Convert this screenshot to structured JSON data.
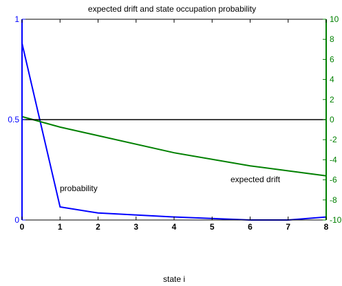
{
  "chart_data": {
    "type": "line",
    "title": "expected drift and state occupation probability",
    "xlabel": "state i",
    "xlim": [
      0,
      8
    ],
    "x_ticks": [
      "0",
      "1",
      "2",
      "3",
      "4",
      "5",
      "6",
      "7",
      "8"
    ],
    "left_axis": {
      "ylim": [
        0,
        1
      ],
      "ticks": [
        "0",
        "0.5",
        "1"
      ],
      "color": "#0000ff"
    },
    "right_axis": {
      "ylim": [
        -10,
        10
      ],
      "ticks": [
        "-10",
        "-8",
        "-6",
        "-4",
        "-2",
        "0",
        "2",
        "4",
        "6",
        "8",
        "10"
      ],
      "color": "#008000"
    },
    "series": [
      {
        "name": "probability",
        "axis": "left",
        "color": "#0000ff",
        "x": [
          0,
          1,
          2,
          4,
          6,
          7,
          8
        ],
        "y": [
          0.88,
          0.065,
          0.035,
          0.015,
          0.0,
          0.0,
          0.015
        ]
      },
      {
        "name": "expected drift",
        "axis": "right",
        "color": "#008000",
        "x": [
          0,
          1,
          4,
          6,
          8
        ],
        "y": [
          0.3,
          -0.75,
          -3.3,
          -4.6,
          -5.6
        ]
      },
      {
        "name": "",
        "axis": "right",
        "color": "#000000",
        "x": [
          0,
          8
        ],
        "y": [
          0,
          0
        ]
      }
    ],
    "annotations": [
      "probability",
      "expected drift"
    ]
  }
}
